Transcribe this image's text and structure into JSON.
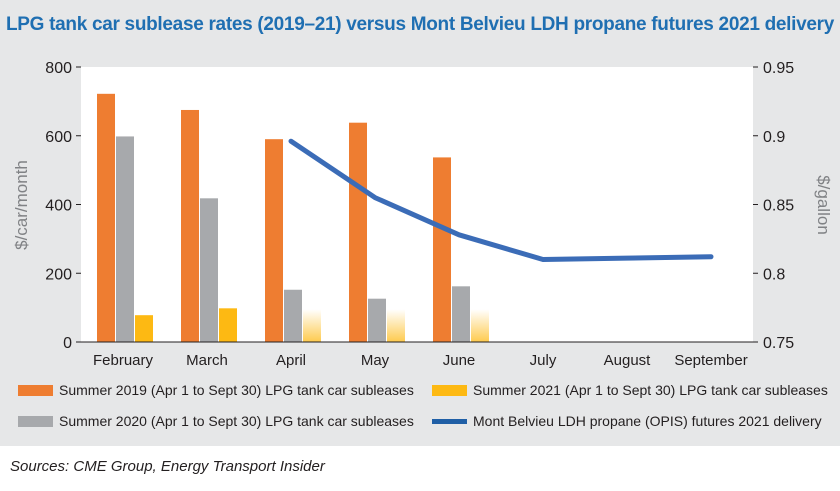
{
  "chart_data": {
    "type": "bar",
    "title": "LPG tank car sublease rates (2019–21) versus Mont Belvieu LDH propane futures 2021 delivery",
    "categories": [
      "February",
      "March",
      "April",
      "May",
      "June",
      "July",
      "August",
      "September"
    ],
    "ylabel_left": "$/car/month",
    "ylabel_right": "$/gallon",
    "ylim_left": [
      0,
      800
    ],
    "yticks_left": [
      "800",
      "600",
      "400",
      "200",
      "0"
    ],
    "ylim_right": [
      0.75,
      0.95
    ],
    "yticks_right": [
      "0.95",
      "0.9",
      "0.85",
      "0.8",
      "0.75"
    ],
    "grid": false,
    "legend_position": "bottom",
    "series": [
      {
        "name": "Summer 2019 (Apr 1 to Sept 30) LPG tank car subleases",
        "kind": "bar",
        "axis": "left",
        "color": "#ee7d31",
        "values": [
          722,
          675,
          590,
          638,
          537,
          null,
          null,
          null
        ]
      },
      {
        "name": "Summer 2020 (Apr 1 to Sept 30) LPG tank car subleases",
        "kind": "bar",
        "axis": "left",
        "color": "#a7a9ac",
        "values": [
          598,
          418,
          152,
          126,
          162,
          null,
          null,
          null
        ]
      },
      {
        "name": "Summer 2021 (Apr 1 to Sept 30) LPG tank car subleases",
        "kind": "bar",
        "axis": "left",
        "color": "#fdb913",
        "values": [
          78,
          98,
          95,
          95,
          95,
          null,
          null,
          null
        ],
        "faded": [
          false,
          false,
          true,
          true,
          true,
          false,
          false,
          false
        ]
      },
      {
        "name": "Mont Belvieu LDH propane (OPIS) futures 2021 delivery",
        "kind": "line",
        "axis": "right",
        "color": "#3b6cb7",
        "values": [
          null,
          null,
          0.896,
          0.855,
          0.828,
          0.81,
          0.811,
          0.812
        ]
      }
    ]
  },
  "legend": {
    "items": [
      {
        "label": "Summer 2019 (Apr 1 to Sept 30) LPG tank car subleases",
        "color": "#ee7d31"
      },
      {
        "label": "Summer 2021 (Apr 1 to Sept 30) LPG tank car subleases",
        "color": "#fdb913"
      },
      {
        "label": "Summer 2020 (Apr 1 to Sept 30) LPG tank car subleases",
        "color": "#a7a9ac"
      },
      {
        "label": "Mont Belvieu LDH propane (OPIS) futures 2021 delivery",
        "color": "#1f5fa6"
      }
    ]
  },
  "source": "Sources: CME Group, Energy Transport Insider"
}
